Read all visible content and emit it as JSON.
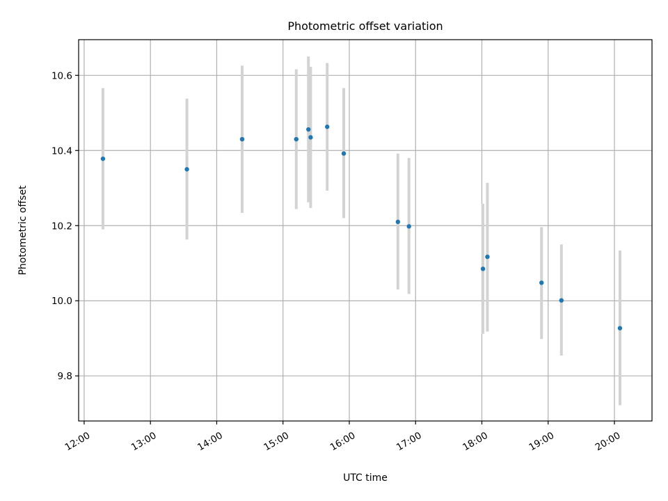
{
  "chart_data": {
    "type": "scatter",
    "title": "Photometric offset variation",
    "xlabel": "UTC time",
    "ylabel": "Photometric offset",
    "x_unit": "UTC time (HH:MM)",
    "xlim": [
      "11:55",
      "20:34"
    ],
    "ylim": [
      9.68,
      10.695
    ],
    "x_ticks": [
      "12:00",
      "13:00",
      "14:00",
      "15:00",
      "16:00",
      "17:00",
      "18:00",
      "19:00",
      "20:00"
    ],
    "y_ticks": [
      "9.8",
      "10.0",
      "10.2",
      "10.4",
      "10.6"
    ],
    "grid": true,
    "colors": {
      "point": "#1f77b4",
      "errorbar": "#d3d3d3",
      "grid": "#b0b0b0"
    },
    "series": [
      {
        "points": [
          {
            "x": "12:17",
            "y": 10.378,
            "ylow": 10.19,
            "yhigh": 10.566
          },
          {
            "x": "13:33",
            "y": 10.35,
            "ylow": 10.163,
            "yhigh": 10.538
          },
          {
            "x": "14:23",
            "y": 10.43,
            "ylow": 10.234,
            "yhigh": 10.626
          },
          {
            "x": "15:12",
            "y": 10.43,
            "ylow": 10.244,
            "yhigh": 10.616
          },
          {
            "x": "15:23",
            "y": 10.456,
            "ylow": 10.262,
            "yhigh": 10.65
          },
          {
            "x": "15:25",
            "y": 10.435,
            "ylow": 10.247,
            "yhigh": 10.623
          },
          {
            "x": "15:40",
            "y": 10.463,
            "ylow": 10.293,
            "yhigh": 10.633
          },
          {
            "x": "15:55",
            "y": 10.392,
            "ylow": 10.22,
            "yhigh": 10.566
          },
          {
            "x": "16:44",
            "y": 10.21,
            "ylow": 10.03,
            "yhigh": 10.392
          },
          {
            "x": "16:54",
            "y": 10.198,
            "ylow": 10.018,
            "yhigh": 10.38
          },
          {
            "x": "18:01",
            "y": 10.085,
            "ylow": 9.912,
            "yhigh": 10.258
          },
          {
            "x": "18:05",
            "y": 10.117,
            "ylow": 9.918,
            "yhigh": 10.314
          },
          {
            "x": "18:54",
            "y": 10.048,
            "ylow": 9.898,
            "yhigh": 10.196
          },
          {
            "x": "19:12",
            "y": 10.001,
            "ylow": 9.854,
            "yhigh": 10.15
          },
          {
            "x": "20:05",
            "y": 9.927,
            "ylow": 9.722,
            "yhigh": 10.134
          }
        ]
      }
    ]
  }
}
